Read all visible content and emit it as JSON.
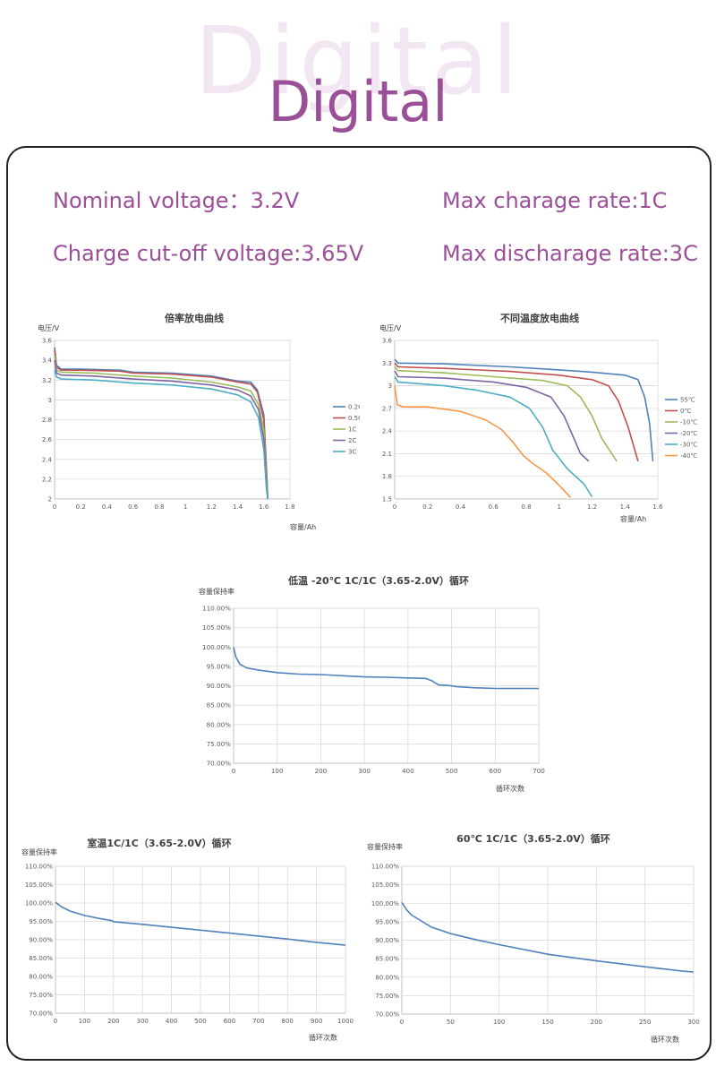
{
  "header": {
    "ghost_title": "Digital",
    "title": "Digital"
  },
  "specs": {
    "nominal_voltage": "Nominal voltage：3.2V",
    "max_charge_rate": "Max charage rate:1C",
    "charge_cutoff": "Charge cut-off voltage:3.65V",
    "max_discharge_rate": "Max discharage rate:3C"
  },
  "colors": {
    "accent": "#9b4f98",
    "ghost": "#f2e6f3"
  },
  "chart_data": [
    {
      "id": "rate",
      "type": "line",
      "title": "倍率放电曲线",
      "ylabel": "电压/V",
      "xlabel": "容量/Ah",
      "xlim": [
        0,
        1.8
      ],
      "ylim": [
        2,
        3.6
      ],
      "xticks": [
        "0",
        "0.2",
        "0.4",
        "0.6",
        "0.8",
        "1",
        "1.2",
        "1.4",
        "1.6",
        "1.8"
      ],
      "yticks": [
        "2",
        "2.2",
        "2.4",
        "2.6",
        "2.8",
        "3",
        "3.2",
        "3.4",
        "3.6"
      ],
      "grid": true,
      "legend": "right",
      "series": [
        {
          "name": "0.2C",
          "color": "#4f81bd",
          "points": [
            [
              0,
              3.53
            ],
            [
              0.015,
              3.35
            ],
            [
              0.05,
              3.31
            ],
            [
              0.2,
              3.31
            ],
            [
              0.5,
              3.3
            ],
            [
              0.6,
              3.28
            ],
            [
              0.9,
              3.27
            ],
            [
              1.2,
              3.24
            ],
            [
              1.4,
              3.19
            ],
            [
              1.5,
              3.18
            ],
            [
              1.55,
              3.1
            ],
            [
              1.6,
              2.85
            ],
            [
              1.62,
              2.3
            ],
            [
              1.63,
              2.0
            ]
          ]
        },
        {
          "name": "0.5C",
          "color": "#c0504d",
          "points": [
            [
              0,
              3.5
            ],
            [
              0.015,
              3.33
            ],
            [
              0.05,
              3.3
            ],
            [
              0.2,
              3.3
            ],
            [
              0.5,
              3.29
            ],
            [
              0.6,
              3.27
            ],
            [
              0.9,
              3.26
            ],
            [
              1.2,
              3.23
            ],
            [
              1.4,
              3.18
            ],
            [
              1.5,
              3.16
            ],
            [
              1.55,
              3.08
            ],
            [
              1.6,
              2.8
            ],
            [
              1.62,
              2.3
            ],
            [
              1.63,
              2.0
            ]
          ]
        },
        {
          "name": "1C",
          "color": "#9bbb59",
          "points": [
            [
              0,
              3.45
            ],
            [
              0.015,
              3.3
            ],
            [
              0.05,
              3.28
            ],
            [
              0.3,
              3.27
            ],
            [
              0.6,
              3.24
            ],
            [
              0.9,
              3.22
            ],
            [
              1.2,
              3.18
            ],
            [
              1.4,
              3.13
            ],
            [
              1.5,
              3.09
            ],
            [
              1.56,
              2.95
            ],
            [
              1.6,
              2.7
            ],
            [
              1.62,
              2.2
            ],
            [
              1.63,
              2.0
            ]
          ]
        },
        {
          "name": "2C",
          "color": "#8064a2",
          "points": [
            [
              0,
              3.4
            ],
            [
              0.015,
              3.27
            ],
            [
              0.05,
              3.25
            ],
            [
              0.3,
              3.24
            ],
            [
              0.6,
              3.21
            ],
            [
              0.9,
              3.19
            ],
            [
              1.2,
              3.15
            ],
            [
              1.4,
              3.1
            ],
            [
              1.5,
              3.04
            ],
            [
              1.56,
              2.9
            ],
            [
              1.6,
              2.6
            ],
            [
              1.62,
              2.15
            ],
            [
              1.63,
              2.0
            ]
          ]
        },
        {
          "name": "3C",
          "color": "#4bacc6",
          "points": [
            [
              0,
              3.3
            ],
            [
              0.015,
              3.23
            ],
            [
              0.05,
              3.21
            ],
            [
              0.3,
              3.2
            ],
            [
              0.6,
              3.17
            ],
            [
              0.9,
              3.15
            ],
            [
              1.2,
              3.11
            ],
            [
              1.4,
              3.05
            ],
            [
              1.5,
              2.98
            ],
            [
              1.56,
              2.82
            ],
            [
              1.6,
              2.5
            ],
            [
              1.62,
              2.1
            ],
            [
              1.63,
              2.0
            ]
          ]
        }
      ]
    },
    {
      "id": "temp",
      "type": "line",
      "title": "不同温度放电曲线",
      "ylabel": "电压/V",
      "xlabel": "容量/Ah",
      "xlim": [
        0,
        1.6
      ],
      "ylim": [
        1.5,
        3.6
      ],
      "xticks": [
        "0",
        "0.2",
        "0.4",
        "0.6",
        "0.8",
        "1",
        "1.2",
        "1.4",
        "1.6"
      ],
      "yticks": [
        "1.5",
        "1.8",
        "2.1",
        "2.4",
        "2.7",
        "3",
        "3.3",
        "3.6"
      ],
      "yticks_values": [
        1.5,
        1.8,
        2.1,
        2.4,
        2.7,
        3.0,
        3.3,
        3.6
      ],
      "grid": true,
      "legend": "right",
      "series": [
        {
          "name": "55℃",
          "color": "#4f81bd",
          "points": [
            [
              0,
              3.35
            ],
            [
              0.02,
              3.3
            ],
            [
              0.3,
              3.29
            ],
            [
              0.7,
              3.25
            ],
            [
              1.0,
              3.21
            ],
            [
              1.2,
              3.18
            ],
            [
              1.4,
              3.14
            ],
            [
              1.48,
              3.08
            ],
            [
              1.52,
              2.85
            ],
            [
              1.55,
              2.5
            ],
            [
              1.57,
              2.0
            ]
          ]
        },
        {
          "name": "0℃",
          "color": "#c0504d",
          "points": [
            [
              0,
              3.3
            ],
            [
              0.02,
              3.25
            ],
            [
              0.3,
              3.23
            ],
            [
              0.7,
              3.19
            ],
            [
              1.0,
              3.14
            ],
            [
              1.2,
              3.08
            ],
            [
              1.3,
              3.0
            ],
            [
              1.36,
              2.8
            ],
            [
              1.42,
              2.45
            ],
            [
              1.48,
              2.0
            ]
          ]
        },
        {
          "name": "-10℃",
          "color": "#9bbb59",
          "points": [
            [
              0,
              3.25
            ],
            [
              0.02,
              3.2
            ],
            [
              0.3,
              3.17
            ],
            [
              0.6,
              3.12
            ],
            [
              0.9,
              3.07
            ],
            [
              1.05,
              3.0
            ],
            [
              1.13,
              2.85
            ],
            [
              1.2,
              2.6
            ],
            [
              1.26,
              2.3
            ],
            [
              1.35,
              2.0
            ]
          ]
        },
        {
          "name": "-20℃",
          "color": "#8064a2",
          "points": [
            [
              0,
              3.2
            ],
            [
              0.02,
              3.12
            ],
            [
              0.3,
              3.1
            ],
            [
              0.6,
              3.05
            ],
            [
              0.8,
              2.98
            ],
            [
              0.95,
              2.85
            ],
            [
              1.03,
              2.6
            ],
            [
              1.09,
              2.3
            ],
            [
              1.13,
              2.1
            ],
            [
              1.18,
              2.0
            ]
          ]
        },
        {
          "name": "-30℃",
          "color": "#4bacc6",
          "points": [
            [
              0,
              3.12
            ],
            [
              0.02,
              3.05
            ],
            [
              0.3,
              3.0
            ],
            [
              0.5,
              2.94
            ],
            [
              0.7,
              2.85
            ],
            [
              0.82,
              2.7
            ],
            [
              0.9,
              2.45
            ],
            [
              0.96,
              2.15
            ],
            [
              1.05,
              1.9
            ],
            [
              1.15,
              1.7
            ],
            [
              1.2,
              1.53
            ]
          ]
        },
        {
          "name": "-40℃",
          "color": "#f79646",
          "points": [
            [
              0,
              3.0
            ],
            [
              0.015,
              2.75
            ],
            [
              0.05,
              2.72
            ],
            [
              0.2,
              2.72
            ],
            [
              0.4,
              2.66
            ],
            [
              0.55,
              2.55
            ],
            [
              0.65,
              2.42
            ],
            [
              0.72,
              2.25
            ],
            [
              0.78,
              2.08
            ],
            [
              0.84,
              1.97
            ],
            [
              0.92,
              1.85
            ],
            [
              1.0,
              1.68
            ],
            [
              1.07,
              1.52
            ]
          ]
        }
      ]
    },
    {
      "id": "low",
      "type": "line",
      "title": "低温 -20℃ 1C/1C（3.65-2.0V）循环",
      "ylabel": "容量保持率",
      "xlabel": "循环次数",
      "xlim": [
        0,
        700
      ],
      "ylim": [
        70,
        110
      ],
      "xticks": [
        "0",
        "100",
        "200",
        "300",
        "400",
        "500",
        "600",
        "700"
      ],
      "yticks": [
        "70.00%",
        "75.00%",
        "80.00%",
        "85.00%",
        "90.00%",
        "95.00%",
        "100.00%",
        "105.00%",
        "110.00%"
      ],
      "grid": true,
      "series": [
        {
          "name": "",
          "color": "#4f81bd",
          "points": [
            [
              0,
              100
            ],
            [
              5,
              97.5
            ],
            [
              15,
              95.5
            ],
            [
              30,
              94.6
            ],
            [
              60,
              94.0
            ],
            [
              100,
              93.4
            ],
            [
              150,
              93.0
            ],
            [
              200,
              92.9
            ],
            [
              250,
              92.6
            ],
            [
              300,
              92.3
            ],
            [
              350,
              92.2
            ],
            [
              400,
              92.0
            ],
            [
              440,
              91.9
            ],
            [
              455,
              91.3
            ],
            [
              470,
              90.2
            ],
            [
              490,
              90.1
            ],
            [
              510,
              89.8
            ],
            [
              550,
              89.5
            ],
            [
              600,
              89.3
            ],
            [
              700,
              89.3
            ]
          ]
        }
      ]
    },
    {
      "id": "room",
      "type": "line",
      "title": "室温1C/1C（3.65-2.0V）循环",
      "ylabel": "容量保持率",
      "xlabel": "循环次数",
      "xlim": [
        0,
        1000
      ],
      "ylim": [
        70,
        110
      ],
      "xticks": [
        "0",
        "100",
        "200",
        "300",
        "400",
        "500",
        "600",
        "700",
        "800",
        "900",
        "1000"
      ],
      "yticks": [
        "70.00%",
        "75.00%",
        "80.00%",
        "85.00%",
        "90.00%",
        "95.00%",
        "100.00%",
        "105.00%",
        "110.00%"
      ],
      "grid": true,
      "series": [
        {
          "name": "",
          "color": "#4f81bd",
          "points": [
            [
              0,
              100.2
            ],
            [
              20,
              99
            ],
            [
              50,
              97.8
            ],
            [
              100,
              96.6
            ],
            [
              150,
              95.8
            ],
            [
              195,
              95.2
            ],
            [
              200,
              94.9
            ],
            [
              300,
              94.2
            ],
            [
              400,
              93.4
            ],
            [
              500,
              92.6
            ],
            [
              600,
              91.8
            ],
            [
              700,
              91.0
            ],
            [
              800,
              90.2
            ],
            [
              900,
              89.3
            ],
            [
              1000,
              88.5
            ]
          ]
        }
      ]
    },
    {
      "id": "hot",
      "type": "line",
      "title": "60℃ 1C/1C（3.65-2.0V）循环",
      "ylabel": "容量保持率",
      "xlabel": "循环次数",
      "xlim": [
        0,
        300
      ],
      "ylim": [
        70,
        110
      ],
      "xticks": [
        "0",
        "50",
        "100",
        "150",
        "200",
        "250",
        "300"
      ],
      "yticks": [
        "70.00%",
        "75.00%",
        "80.00%",
        "85.00%",
        "90.00%",
        "95.00%",
        "100.00%",
        "105.00%",
        "110.00%"
      ],
      "grid": true,
      "series": [
        {
          "name": "",
          "color": "#4f81bd",
          "points": [
            [
              0,
              100.2
            ],
            [
              5,
              98.2
            ],
            [
              10,
              96.8
            ],
            [
              20,
              95.2
            ],
            [
              30,
              93.6
            ],
            [
              50,
              91.8
            ],
            [
              75,
              90.2
            ],
            [
              100,
              88.8
            ],
            [
              150,
              86.2
            ],
            [
              200,
              84.4
            ],
            [
              250,
              82.8
            ],
            [
              270,
              82.2
            ],
            [
              290,
              81.6
            ],
            [
              300,
              81.4
            ]
          ]
        }
      ]
    }
  ]
}
